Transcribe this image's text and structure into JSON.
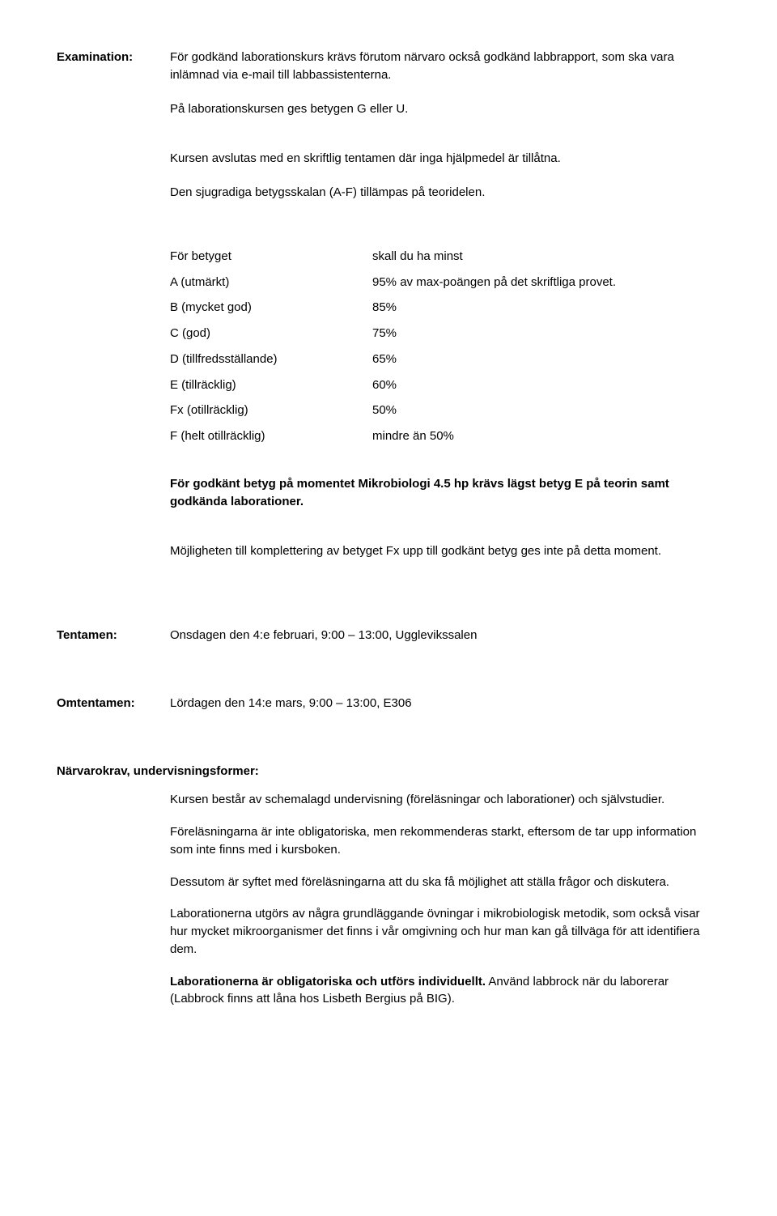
{
  "examination": {
    "label": "Examination:",
    "p1": "För godkänd laborationskurs krävs förutom närvaro också godkänd labbrapport, som ska vara inlämnad via e-mail till labbassistenterna.",
    "p2": "På laborationskursen ges betygen G eller U.",
    "p3": "Kursen avslutas med en skriftlig tentamen där inga hjälpmedel är tillåtna.",
    "p4": "Den sjugradiga betygsskalan (A-F) tillämpas på teoridelen.",
    "grade_table": {
      "header_left": "För betyget",
      "header_right": "skall du ha minst",
      "rows": [
        {
          "left": "A (utmärkt)",
          "right": "95% av max-poängen på det skriftliga provet."
        },
        {
          "left": "B (mycket god)",
          "right": "85%"
        },
        {
          "left": "C (god)",
          "right": "75%"
        },
        {
          "left": "D (tillfredsställande)",
          "right": "65%"
        },
        {
          "left": "E (tillräcklig)",
          "right": "60%"
        },
        {
          "left": "Fx (otillräcklig)",
          "right": "50%"
        },
        {
          "left": "F (helt otillräcklig)",
          "right": "mindre än 50%"
        }
      ]
    },
    "p5": "För godkänt betyg på momentet Mikrobiologi 4.5 hp krävs lägst betyg E på teorin samt godkända laborationer.",
    "p6": "Möjligheten till komplettering av betyget Fx upp till godkänt betyg ges inte på detta moment."
  },
  "tentamen": {
    "label": "Tentamen:",
    "value": "Onsdagen den 4:e februari, 9:00 – 13:00, Ugglevikssalen"
  },
  "omtentamen": {
    "label": "Omtentamen:",
    "value": "Lördagen den 14:e mars, 9:00 – 13:00, E306"
  },
  "attendance": {
    "heading": "Närvarokrav, undervisningsformer:",
    "p1": "Kursen består av schemalagd undervisning (föreläsningar och laborationer) och självstudier.",
    "p2": "Föreläsningarna är inte obligatoriska, men rekommenderas starkt, eftersom de tar upp information som inte finns med i kursboken.",
    "p3": "Dessutom är syftet med föreläsningarna att du ska få möjlighet att ställa frågor och diskutera.",
    "p4": "Laborationerna utgörs av några grundläggande övningar i mikrobiologisk metodik, som också visar hur mycket mikroorganismer det finns i vår omgivning och hur man kan gå tillväga för att identifiera dem.",
    "p5a": "Laborationerna är obligatoriska och utförs individuellt.",
    "p5b": " Använd labbrock när du laborerar (Labbrock finns att låna hos Lisbeth Bergius på BIG)."
  }
}
